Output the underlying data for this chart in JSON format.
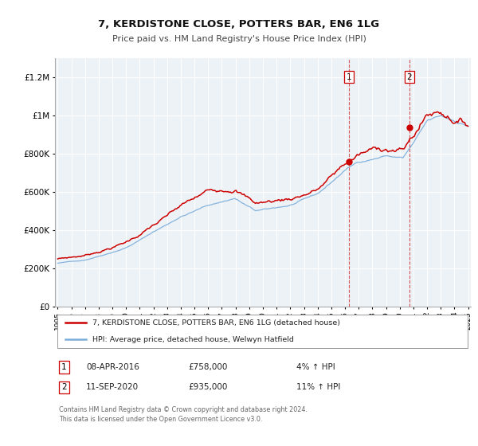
{
  "title": "7, KERDISTONE CLOSE, POTTERS BAR, EN6 1LG",
  "subtitle": "Price paid vs. HM Land Registry's House Price Index (HPI)",
  "x_start_year": 1995,
  "x_end_year": 2025,
  "ylim": [
    0,
    1300000
  ],
  "yticks": [
    0,
    200000,
    400000,
    600000,
    800000,
    1000000,
    1200000
  ],
  "ytick_labels": [
    "£0",
    "£200K",
    "£400K",
    "£600K",
    "£800K",
    "£1M",
    "£1.2M"
  ],
  "line1_color": "#cc0000",
  "line2_color": "#7aadda",
  "marker1_color": "#cc0000",
  "vline_color": "#cc0000",
  "event1_year": 2016.27,
  "event1_value": 758000,
  "event2_year": 2020.7,
  "event2_value": 935000,
  "event1_date": "08-APR-2016",
  "event1_price": "£758,000",
  "event1_note": "4% ↑ HPI",
  "event2_date": "11-SEP-2020",
  "event2_price": "£935,000",
  "event2_note": "11% ↑ HPI",
  "legend_label1": "7, KERDISTONE CLOSE, POTTERS BAR, EN6 1LG (detached house)",
  "legend_label2": "HPI: Average price, detached house, Welwyn Hatfield",
  "footer": "Contains HM Land Registry data © Crown copyright and database right 2024.\nThis data is licensed under the Open Government Licence v3.0.",
  "background_color": "#ffffff",
  "plot_bg_color": "#edf2f7"
}
